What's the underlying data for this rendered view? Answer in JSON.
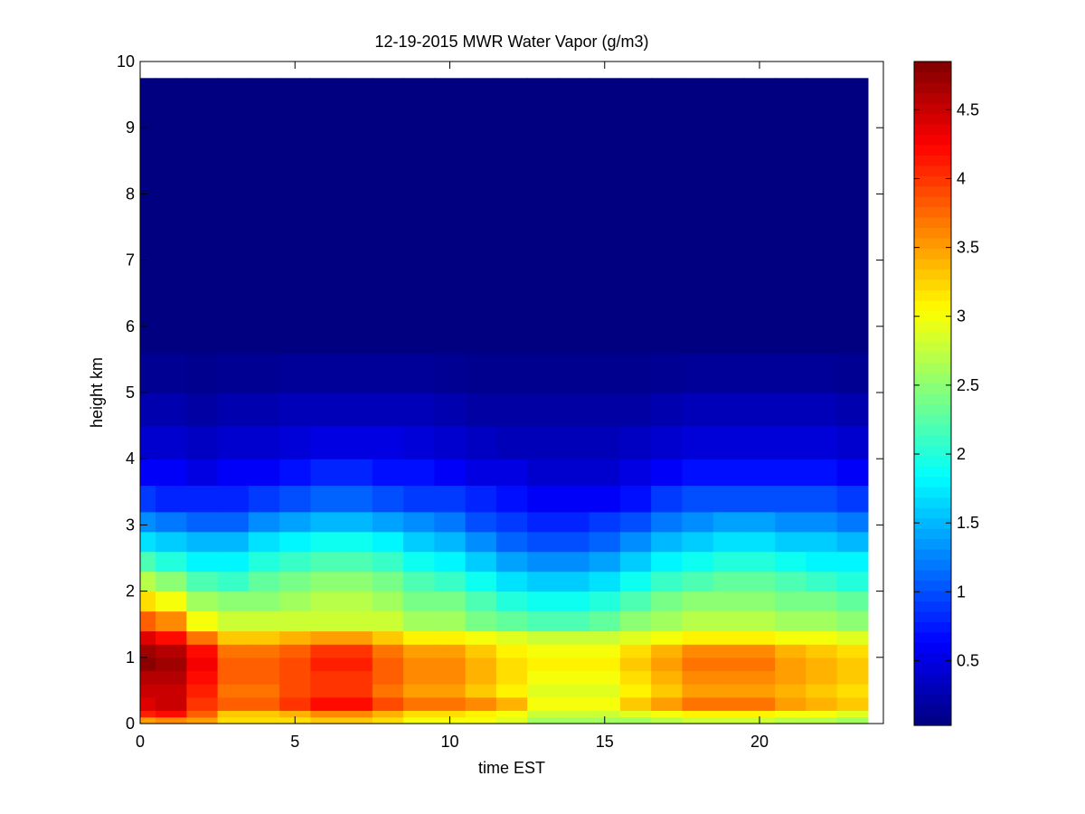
{
  "chart_data": {
    "type": "heatmap",
    "title": "12-19-2015 MWR Water Vapor (g/m3)",
    "xlabel": "time EST",
    "ylabel": "height km",
    "xlim": [
      0,
      24
    ],
    "ylim": [
      0,
      10
    ],
    "x_ticks": [
      0,
      5,
      10,
      15,
      20
    ],
    "y_ticks": [
      0,
      1,
      2,
      3,
      4,
      5,
      6,
      7,
      8,
      9,
      10
    ],
    "x_tick_labels": [
      "0",
      "5",
      "10",
      "15",
      "20"
    ],
    "y_tick_labels": [
      "0",
      "1",
      "2",
      "3",
      "4",
      "5",
      "6",
      "7",
      "8",
      "9",
      "10"
    ],
    "data_x_range": [
      0,
      23.5
    ],
    "data_y_top": 9.75,
    "time_hours": [
      0,
      1,
      2,
      3,
      4,
      5,
      6,
      7,
      8,
      9,
      10,
      11,
      12,
      13,
      14,
      15,
      16,
      17,
      18,
      19,
      20,
      21,
      22,
      23
    ],
    "colormap": "jet",
    "colorbar": {
      "range": [
        0.03,
        4.85
      ],
      "ticks": [
        0.5,
        1,
        1.5,
        2,
        2.5,
        3,
        3.5,
        4,
        4.5
      ],
      "tick_labels": [
        "0.5",
        "1",
        "1.5",
        "2",
        "2.5",
        "3",
        "3.5",
        "4",
        "4.5"
      ]
    },
    "profiles_g_m3": [
      {
        "height_km": 0.05,
        "values": [
          3.5,
          3.6,
          3.5,
          3.2,
          3.2,
          3.2,
          3.3,
          3.3,
          3.2,
          3.0,
          3.0,
          3.0,
          2.9,
          2.6,
          2.6,
          2.6,
          2.6,
          2.7,
          2.8,
          2.8,
          2.8,
          2.7,
          2.7,
          2.6
        ]
      },
      {
        "height_km": 0.15,
        "values": [
          4.1,
          4.2,
          3.8,
          3.3,
          3.3,
          3.4,
          3.6,
          3.6,
          3.4,
          3.2,
          3.2,
          3.1,
          3.0,
          2.8,
          2.8,
          2.8,
          2.9,
          3.0,
          3.1,
          3.1,
          3.1,
          3.0,
          3.0,
          2.9
        ]
      },
      {
        "height_km": 0.3,
        "values": [
          4.4,
          4.5,
          4.0,
          3.8,
          3.8,
          4.0,
          4.2,
          4.2,
          3.9,
          3.7,
          3.7,
          3.6,
          3.4,
          3.0,
          3.0,
          3.0,
          3.3,
          3.5,
          3.7,
          3.7,
          3.7,
          3.5,
          3.4,
          3.3
        ]
      },
      {
        "height_km": 0.5,
        "values": [
          4.5,
          4.5,
          4.1,
          3.7,
          3.7,
          3.9,
          4.0,
          4.0,
          3.7,
          3.5,
          3.5,
          3.3,
          3.1,
          2.9,
          2.9,
          2.9,
          3.1,
          3.3,
          3.5,
          3.5,
          3.5,
          3.4,
          3.3,
          3.2
        ]
      },
      {
        "height_km": 0.7,
        "values": [
          4.6,
          4.6,
          4.2,
          3.8,
          3.8,
          3.9,
          4.0,
          4.0,
          3.8,
          3.6,
          3.6,
          3.4,
          3.2,
          3.0,
          3.0,
          3.0,
          3.2,
          3.4,
          3.6,
          3.6,
          3.6,
          3.5,
          3.4,
          3.3
        ]
      },
      {
        "height_km": 0.9,
        "values": [
          4.8,
          4.7,
          4.3,
          3.8,
          3.8,
          3.9,
          4.1,
          4.1,
          3.8,
          3.6,
          3.6,
          3.4,
          3.2,
          3.1,
          3.1,
          3.1,
          3.3,
          3.5,
          3.7,
          3.7,
          3.7,
          3.5,
          3.4,
          3.3
        ]
      },
      {
        "height_km": 1.1,
        "values": [
          4.7,
          4.6,
          4.2,
          3.7,
          3.7,
          3.8,
          4.0,
          4.0,
          3.7,
          3.5,
          3.5,
          3.3,
          3.1,
          3.0,
          3.0,
          3.0,
          3.2,
          3.4,
          3.6,
          3.6,
          3.6,
          3.4,
          3.3,
          3.2
        ]
      },
      {
        "height_km": 1.3,
        "values": [
          4.4,
          4.2,
          3.7,
          3.3,
          3.3,
          3.4,
          3.5,
          3.5,
          3.3,
          3.1,
          3.1,
          3.0,
          2.9,
          2.8,
          2.8,
          2.8,
          2.9,
          3.0,
          3.1,
          3.1,
          3.1,
          3.0,
          3.0,
          2.9
        ]
      },
      {
        "height_km": 1.55,
        "values": [
          3.8,
          3.6,
          3.0,
          2.8,
          2.8,
          2.8,
          2.8,
          2.8,
          2.8,
          2.6,
          2.6,
          2.4,
          2.3,
          2.2,
          2.2,
          2.3,
          2.5,
          2.6,
          2.7,
          2.7,
          2.7,
          2.6,
          2.6,
          2.5
        ]
      },
      {
        "height_km": 1.85,
        "values": [
          3.2,
          3.0,
          2.6,
          2.5,
          2.5,
          2.6,
          2.7,
          2.7,
          2.6,
          2.4,
          2.4,
          2.2,
          2.0,
          1.9,
          1.9,
          2.0,
          2.2,
          2.4,
          2.5,
          2.5,
          2.5,
          2.4,
          2.4,
          2.3
        ]
      },
      {
        "height_km": 2.15,
        "values": [
          2.7,
          2.5,
          2.2,
          2.1,
          2.3,
          2.4,
          2.5,
          2.5,
          2.4,
          2.2,
          2.1,
          1.9,
          1.7,
          1.6,
          1.6,
          1.7,
          1.9,
          2.1,
          2.2,
          2.3,
          2.3,
          2.2,
          2.1,
          2.0
        ]
      },
      {
        "height_km": 2.45,
        "values": [
          2.2,
          2.0,
          1.8,
          1.8,
          2.0,
          2.1,
          2.2,
          2.2,
          2.1,
          1.9,
          1.8,
          1.6,
          1.4,
          1.3,
          1.3,
          1.4,
          1.6,
          1.8,
          1.9,
          2.0,
          2.0,
          1.9,
          1.8,
          1.8
        ]
      },
      {
        "height_km": 2.75,
        "values": [
          1.7,
          1.6,
          1.5,
          1.5,
          1.7,
          1.8,
          1.9,
          1.9,
          1.8,
          1.6,
          1.5,
          1.3,
          1.1,
          1.0,
          1.0,
          1.1,
          1.3,
          1.5,
          1.6,
          1.7,
          1.7,
          1.6,
          1.6,
          1.5
        ]
      },
      {
        "height_km": 3.05,
        "values": [
          1.3,
          1.2,
          1.1,
          1.1,
          1.3,
          1.4,
          1.5,
          1.5,
          1.4,
          1.3,
          1.2,
          1.0,
          0.9,
          0.8,
          0.8,
          0.9,
          1.0,
          1.2,
          1.3,
          1.4,
          1.4,
          1.3,
          1.3,
          1.2
        ]
      },
      {
        "height_km": 3.4,
        "values": [
          0.9,
          0.8,
          0.8,
          0.8,
          0.9,
          1.0,
          1.1,
          1.1,
          1.0,
          0.9,
          0.9,
          0.8,
          0.7,
          0.6,
          0.6,
          0.6,
          0.7,
          0.9,
          1.0,
          1.0,
          1.0,
          1.0,
          1.0,
          0.9
        ]
      },
      {
        "height_km": 3.8,
        "values": [
          0.6,
          0.6,
          0.5,
          0.6,
          0.6,
          0.7,
          0.8,
          0.8,
          0.7,
          0.7,
          0.6,
          0.5,
          0.5,
          0.4,
          0.4,
          0.4,
          0.5,
          0.6,
          0.7,
          0.7,
          0.7,
          0.7,
          0.7,
          0.6
        ]
      },
      {
        "height_km": 4.25,
        "values": [
          0.4,
          0.4,
          0.35,
          0.4,
          0.4,
          0.45,
          0.5,
          0.5,
          0.5,
          0.45,
          0.4,
          0.35,
          0.3,
          0.3,
          0.3,
          0.3,
          0.35,
          0.4,
          0.45,
          0.45,
          0.45,
          0.45,
          0.45,
          0.4
        ]
      },
      {
        "height_km": 4.75,
        "values": [
          0.25,
          0.25,
          0.2,
          0.25,
          0.25,
          0.3,
          0.3,
          0.3,
          0.3,
          0.3,
          0.25,
          0.2,
          0.2,
          0.2,
          0.2,
          0.2,
          0.2,
          0.25,
          0.3,
          0.3,
          0.3,
          0.3,
          0.3,
          0.25
        ]
      },
      {
        "height_km": 5.3,
        "values": [
          0.12,
          0.12,
          0.1,
          0.12,
          0.12,
          0.15,
          0.15,
          0.15,
          0.15,
          0.15,
          0.12,
          0.1,
          0.1,
          0.1,
          0.1,
          0.1,
          0.1,
          0.12,
          0.15,
          0.15,
          0.15,
          0.15,
          0.15,
          0.12
        ]
      },
      {
        "height_km": 7.6,
        "values": [
          0.03,
          0.03,
          0.03,
          0.03,
          0.03,
          0.03,
          0.03,
          0.03,
          0.03,
          0.03,
          0.03,
          0.03,
          0.03,
          0.03,
          0.03,
          0.03,
          0.03,
          0.03,
          0.03,
          0.03,
          0.03,
          0.03,
          0.03,
          0.03
        ]
      }
    ]
  }
}
